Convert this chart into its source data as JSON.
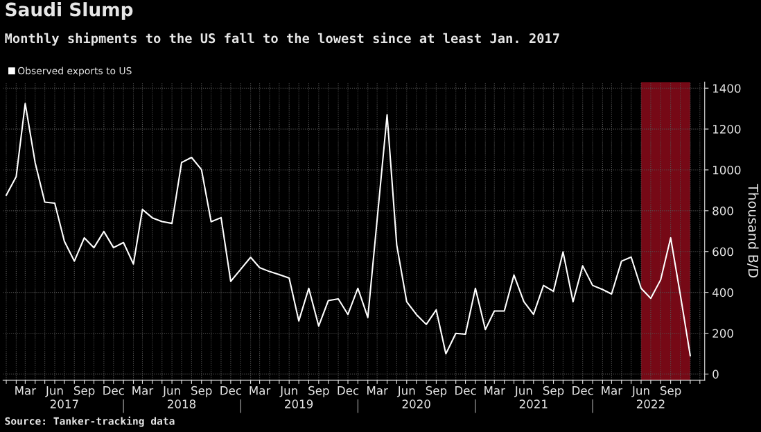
{
  "chart_data": {
    "type": "line",
    "title": "Saudi Slump",
    "subtitle": "Monthly shipments to the US fall to the lowest since at least Jan. 2017",
    "ylabel": "Thousand B/D",
    "annotations": [
      "Source: Tanker-tracking data"
    ],
    "x": [
      "2017-01",
      "2017-02",
      "2017-03",
      "2017-04",
      "2017-05",
      "2017-06",
      "2017-07",
      "2017-08",
      "2017-09",
      "2017-10",
      "2017-11",
      "2017-12",
      "2018-01",
      "2018-02",
      "2018-03",
      "2018-04",
      "2018-05",
      "2018-06",
      "2018-07",
      "2018-08",
      "2018-09",
      "2018-10",
      "2018-11",
      "2018-12",
      "2019-01",
      "2019-02",
      "2019-03",
      "2019-04",
      "2019-05",
      "2019-06",
      "2019-07",
      "2019-08",
      "2019-09",
      "2019-10",
      "2019-11",
      "2019-12",
      "2020-01",
      "2020-02",
      "2020-03",
      "2020-04",
      "2020-05",
      "2020-06",
      "2020-07",
      "2020-08",
      "2020-09",
      "2020-10",
      "2020-11",
      "2020-12",
      "2021-01",
      "2021-02",
      "2021-03",
      "2021-04",
      "2021-05",
      "2021-06",
      "2021-07",
      "2021-08",
      "2021-09",
      "2021-10",
      "2021-11",
      "2021-12",
      "2022-01",
      "2022-02",
      "2022-03",
      "2022-04",
      "2022-05",
      "2022-06",
      "2022-07",
      "2022-08",
      "2022-09",
      "2022-10",
      "2022-11"
    ],
    "series": [
      {
        "name": "Observed exports to US",
        "color": "#ffffff",
        "values": [
          876,
          967,
          1325,
          1035,
          842,
          837,
          650,
          553,
          667,
          619,
          698,
          619,
          644,
          539,
          806,
          765,
          747,
          738,
          1036,
          1061,
          1001,
          746,
          766,
          454,
          513,
          572,
          521,
          502,
          487,
          470,
          260,
          420,
          235,
          360,
          368,
          292,
          420,
          277,
          757,
          1270,
          632,
          354,
          292,
          243,
          314,
          99,
          199,
          195,
          420,
          218,
          309,
          309,
          485,
          354,
          292,
          434,
          405,
          598,
          354,
          530,
          434,
          414,
          392,
          553,
          573,
          420,
          371,
          462,
          667,
          390,
          90
        ]
      }
    ],
    "xlim": [
      "2016-12-22",
      "2022-12-16"
    ],
    "xticks": [
      {
        "value": "2017-01",
        "label": null
      },
      {
        "value": "2017-02",
        "label": null
      },
      {
        "value": "2017-03",
        "label": "Mar"
      },
      {
        "value": "2017-04",
        "label": null
      },
      {
        "value": "2017-05",
        "label": null
      },
      {
        "value": "2017-06",
        "label": "Jun"
      },
      {
        "value": "2017-07",
        "label": null
      },
      {
        "value": "2017-08",
        "label": null
      },
      {
        "value": "2017-09",
        "label": "Sep"
      },
      {
        "value": "2017-10",
        "label": null
      },
      {
        "value": "2017-11",
        "label": null
      },
      {
        "value": "2017-12",
        "label": "Dec"
      },
      {
        "value": "2018-01",
        "label": null
      },
      {
        "value": "2018-02",
        "label": null
      },
      {
        "value": "2018-03",
        "label": "Mar"
      },
      {
        "value": "2018-04",
        "label": null
      },
      {
        "value": "2018-05",
        "label": null
      },
      {
        "value": "2018-06",
        "label": "Jun"
      },
      {
        "value": "2018-07",
        "label": null
      },
      {
        "value": "2018-08",
        "label": null
      },
      {
        "value": "2018-09",
        "label": "Sep"
      },
      {
        "value": "2018-10",
        "label": null
      },
      {
        "value": "2018-11",
        "label": null
      },
      {
        "value": "2018-12",
        "label": "Dec"
      },
      {
        "value": "2019-01",
        "label": null
      },
      {
        "value": "2019-02",
        "label": null
      },
      {
        "value": "2019-03",
        "label": "Mar"
      },
      {
        "value": "2019-04",
        "label": null
      },
      {
        "value": "2019-05",
        "label": null
      },
      {
        "value": "2019-06",
        "label": "Jun"
      },
      {
        "value": "2019-07",
        "label": null
      },
      {
        "value": "2019-08",
        "label": null
      },
      {
        "value": "2019-09",
        "label": "Sep"
      },
      {
        "value": "2019-10",
        "label": null
      },
      {
        "value": "2019-11",
        "label": null
      },
      {
        "value": "2019-12",
        "label": "Dec"
      },
      {
        "value": "2020-01",
        "label": null
      },
      {
        "value": "2020-02",
        "label": null
      },
      {
        "value": "2020-03",
        "label": "Mar"
      },
      {
        "value": "2020-04",
        "label": null
      },
      {
        "value": "2020-05",
        "label": null
      },
      {
        "value": "2020-06",
        "label": "Jun"
      },
      {
        "value": "2020-07",
        "label": null
      },
      {
        "value": "2020-08",
        "label": null
      },
      {
        "value": "2020-09",
        "label": "Sep"
      },
      {
        "value": "2020-10",
        "label": null
      },
      {
        "value": "2020-11",
        "label": null
      },
      {
        "value": "2020-12",
        "label": "Dec"
      },
      {
        "value": "2021-01",
        "label": null
      },
      {
        "value": "2021-02",
        "label": null
      },
      {
        "value": "2021-03",
        "label": "Mar"
      },
      {
        "value": "2021-04",
        "label": null
      },
      {
        "value": "2021-05",
        "label": null
      },
      {
        "value": "2021-06",
        "label": "Jun"
      },
      {
        "value": "2021-07",
        "label": null
      },
      {
        "value": "2021-08",
        "label": null
      },
      {
        "value": "2021-09",
        "label": "Sep"
      },
      {
        "value": "2021-10",
        "label": null
      },
      {
        "value": "2021-11",
        "label": null
      },
      {
        "value": "2021-12",
        "label": "Dec"
      },
      {
        "value": "2022-01",
        "label": null
      },
      {
        "value": "2022-02",
        "label": null
      },
      {
        "value": "2022-03",
        "label": "Mar"
      },
      {
        "value": "2022-04",
        "label": null
      },
      {
        "value": "2022-05",
        "label": null
      },
      {
        "value": "2022-06",
        "label": "Jun"
      },
      {
        "value": "2022-07",
        "label": null
      },
      {
        "value": "2022-08",
        "label": null
      },
      {
        "value": "2022-09",
        "label": "Sep"
      },
      {
        "value": "2022-10",
        "label": null
      },
      {
        "value": "2022-11",
        "label": null
      },
      {
        "value": "2022-12",
        "label": null
      }
    ],
    "x2lim": [
      "2016-12-22",
      "2022-12-16"
    ],
    "x2ticks": [
      {
        "value": "2017-07-01",
        "label": "2017"
      },
      {
        "value": "2018-01-01",
        "label": null
      },
      {
        "value": "2018-07-01",
        "label": "2018"
      },
      {
        "value": "2019-01-01",
        "label": null
      },
      {
        "value": "2019-07-01",
        "label": "2019"
      },
      {
        "value": "2020-01-01",
        "label": null
      },
      {
        "value": "2020-07-01",
        "label": "2020"
      },
      {
        "value": "2021-01-01",
        "label": null
      },
      {
        "value": "2021-07-01",
        "label": "2021"
      },
      {
        "value": "2022-01-01",
        "label": null
      },
      {
        "value": "2022-07-01",
        "label": "2022"
      }
    ],
    "ylim": [
      -30,
      1430
    ],
    "yticks": [
      0,
      200,
      400,
      600,
      800,
      1000,
      1200,
      1400
    ],
    "bands": [
      {
        "axis": "x",
        "from": "2022-06",
        "to": "2022-11",
        "color": "#8b0a1a"
      }
    ],
    "grid": true,
    "legend": "top left",
    "line_style": "solid",
    "marker": "none"
  }
}
